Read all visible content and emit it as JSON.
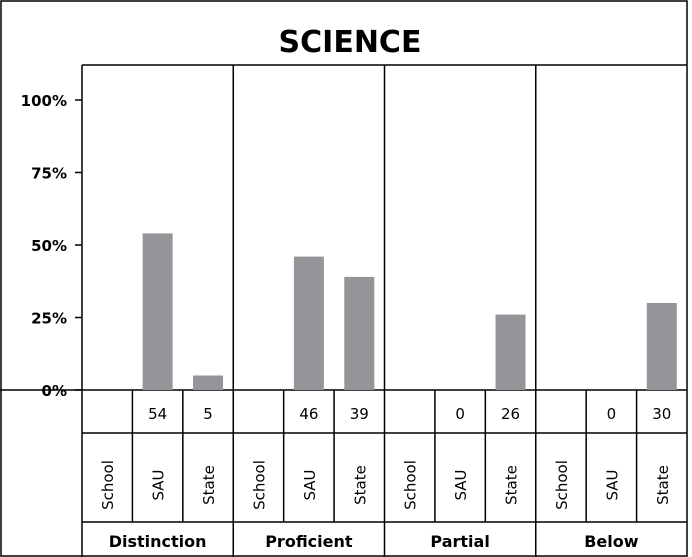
{
  "chart_data": {
    "type": "bar",
    "title": "SCIENCE",
    "ylim": [
      0,
      100
    ],
    "y_ticks": [
      0,
      25,
      50,
      75,
      100
    ],
    "y_tick_labels": [
      "0%",
      "25%",
      "50%",
      "75%",
      "100%"
    ],
    "grid": false,
    "groups": [
      {
        "label": "Distinction",
        "bars": [
          "School",
          "SAU",
          "State"
        ],
        "values": [
          null,
          54,
          5
        ],
        "labels": [
          "",
          "54",
          "5"
        ]
      },
      {
        "label": "Proficient",
        "bars": [
          "School",
          "SAU",
          "State"
        ],
        "values": [
          null,
          46,
          39
        ],
        "labels": [
          "",
          "46",
          "39"
        ]
      },
      {
        "label": "Partial",
        "bars": [
          "School",
          "SAU",
          "State"
        ],
        "values": [
          null,
          0,
          26
        ],
        "labels": [
          "",
          "0",
          "26"
        ]
      },
      {
        "label": "Below",
        "bars": [
          "School",
          "SAU",
          "State"
        ],
        "values": [
          null,
          0,
          30
        ],
        "labels": [
          "",
          "0",
          "30"
        ]
      }
    ],
    "colors": {
      "bar": "#939598",
      "line": "#000000",
      "text": "#000000"
    }
  }
}
